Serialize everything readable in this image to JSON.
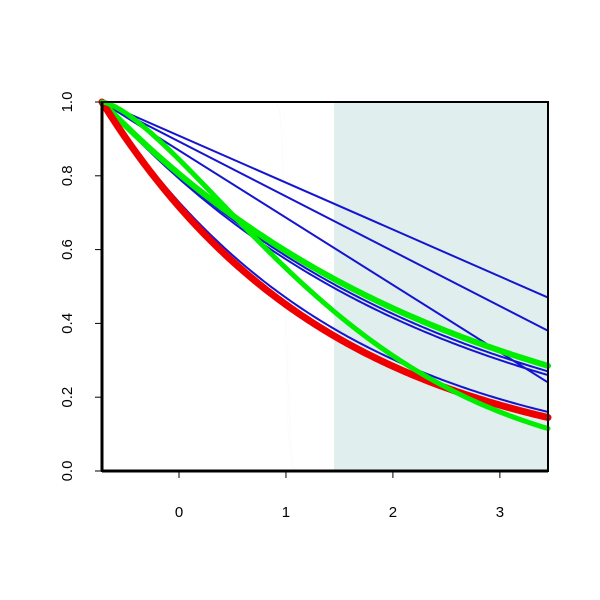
{
  "chart_data": {
    "type": "line",
    "title": "",
    "xlabel": "",
    "ylabel": "",
    "xlim": [
      -0.72,
      3.45
    ],
    "ylim": [
      0,
      1
    ],
    "xticks": [
      0,
      1,
      2,
      3
    ],
    "yticks": [
      0.0,
      0.2,
      0.4,
      0.6,
      0.8,
      1.0
    ],
    "xtick_labels": [
      "0",
      "1",
      "2",
      "3"
    ],
    "ytick_labels": [
      "0.0",
      "0.2",
      "0.4",
      "0.6",
      "0.8",
      "1.0"
    ],
    "grid": false,
    "shaded_region": {
      "x": [
        1.45,
        3.45
      ],
      "color": "#e0eeee"
    },
    "colors": {
      "step": "#0000ff",
      "blue": "#1515d0",
      "green": "#00ee00",
      "red": "#ee0000",
      "axis": "#000000"
    },
    "series": [
      {
        "color": "#0000ff",
        "kind": "step",
        "center": 1.0,
        "width": 0.016
      },
      {
        "color": "#0000ff",
        "kind": "step",
        "center": 1.02,
        "width": 0.012
      },
      {
        "color": "#0000ff",
        "kind": "step",
        "center": 0.99,
        "width": 0.014
      },
      {
        "color": "#1515d0",
        "kind": "line",
        "x": [
          -0.72,
          3.45
        ],
        "y": [
          1.0,
          0.47
        ]
      },
      {
        "color": "#1515d0",
        "kind": "line",
        "x": [
          -0.72,
          3.45
        ],
        "y": [
          1.0,
          0.38
        ]
      },
      {
        "color": "#1515d0",
        "kind": "line",
        "x": [
          -0.72,
          3.45
        ],
        "y": [
          1.0,
          0.24
        ]
      },
      {
        "color": "#1515d0",
        "kind": "exp",
        "x0": -0.72,
        "x1": 3.45,
        "y_end": 0.26,
        "width": 2
      },
      {
        "color": "#1515d0",
        "kind": "exp",
        "x0": -0.72,
        "x1": 3.45,
        "y_end": 0.27,
        "width": 2
      },
      {
        "color": "#1515d0",
        "kind": "exp",
        "x0": -0.72,
        "x1": 3.45,
        "y_end": 0.16,
        "width": 2
      },
      {
        "color": "#00ee00",
        "kind": "exp",
        "x0": -0.72,
        "x1": 3.45,
        "y_end": 0.285,
        "width": 6
      },
      {
        "color": "#ee0000",
        "kind": "exp",
        "x0": -0.72,
        "x1": 3.45,
        "y_end": 0.145,
        "width": 7
      },
      {
        "color": "#00ee00",
        "kind": "gauss",
        "x0": -0.72,
        "x1": 3.45,
        "scale": 2.45,
        "power": 1.45,
        "width": 5
      }
    ]
  }
}
